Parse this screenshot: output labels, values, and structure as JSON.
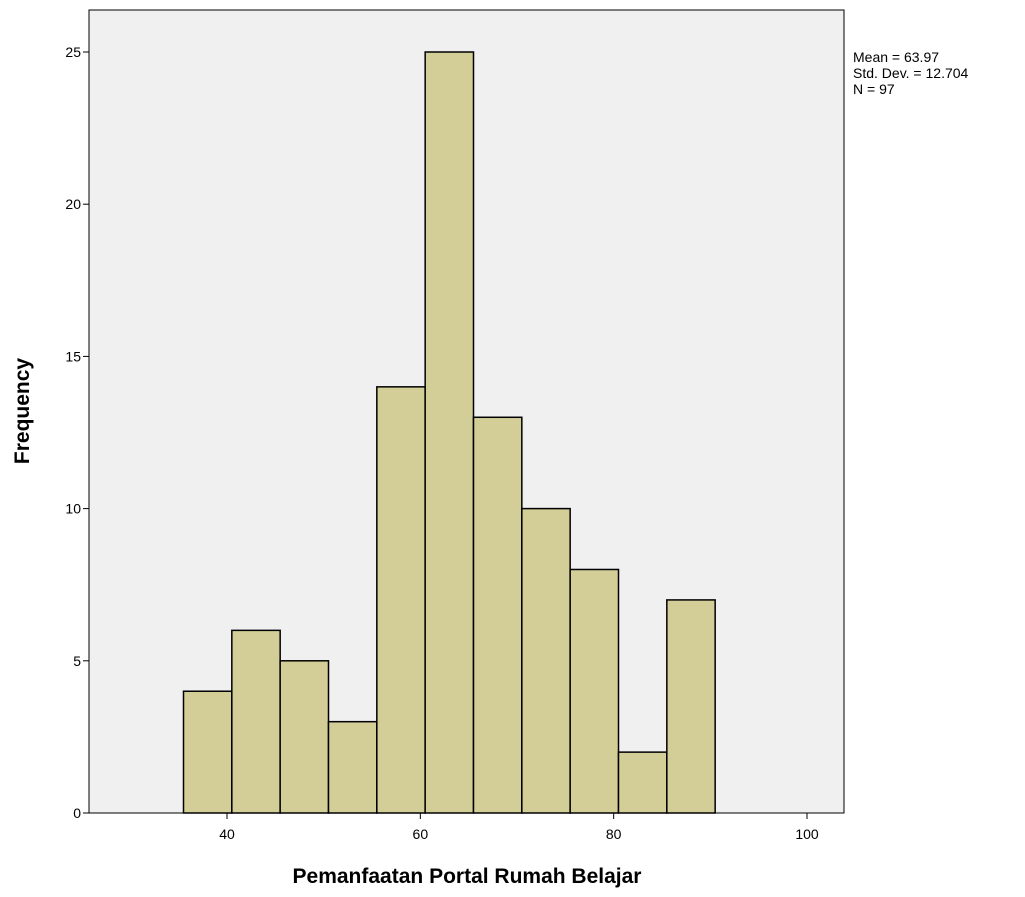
{
  "chart_data": {
    "type": "bar",
    "subtype": "histogram",
    "xlabel": "Pemanfaatan Portal Rumah Belajar",
    "ylabel": "Frequency",
    "xlim": [
      26,
      104
    ],
    "ylim": [
      0,
      26
    ],
    "x_ticks": [
      40,
      60,
      80,
      100
    ],
    "y_ticks": [
      0,
      5,
      10,
      15,
      20,
      25
    ],
    "bin_width": 5,
    "bins": [
      {
        "start": 35.5,
        "end": 40.5,
        "count": 4
      },
      {
        "start": 40.5,
        "end": 45.5,
        "count": 6
      },
      {
        "start": 45.5,
        "end": 50.5,
        "count": 5
      },
      {
        "start": 50.5,
        "end": 55.5,
        "count": 3
      },
      {
        "start": 55.5,
        "end": 60.5,
        "count": 14
      },
      {
        "start": 60.5,
        "end": 65.5,
        "count": 25
      },
      {
        "start": 65.5,
        "end": 70.5,
        "count": 13
      },
      {
        "start": 70.5,
        "end": 75.5,
        "count": 10
      },
      {
        "start": 75.5,
        "end": 80.5,
        "count": 8
      },
      {
        "start": 80.5,
        "end": 85.5,
        "count": 2
      },
      {
        "start": 85.5,
        "end": 90.5,
        "count": 7
      }
    ],
    "stats": [
      "Mean = 63.97",
      "Std. Dev. = 12.704",
      "N = 97"
    ],
    "colors": {
      "bar_fill": "#d3ce97",
      "bar_stroke": "#000000",
      "plot_background": "#f0f0f0"
    },
    "grid": false,
    "legend": "none"
  }
}
